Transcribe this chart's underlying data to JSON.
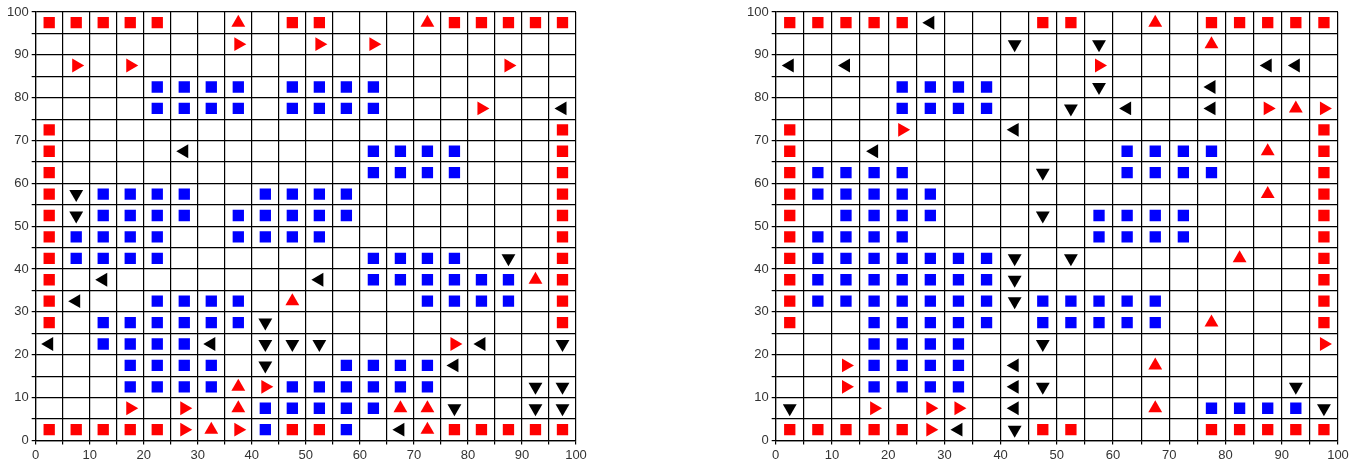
{
  "chart_data": [
    {
      "type": "scatter",
      "xlim": [
        0,
        100
      ],
      "ylim": [
        0,
        100
      ],
      "xticks": [
        0,
        {
          "value": 5,
          "label": null
        },
        10,
        {
          "value": 15,
          "label": null
        },
        20,
        {
          "value": 25,
          "label": null
        },
        30,
        {
          "value": 35,
          "label": null
        },
        40,
        {
          "value": 45,
          "label": null
        },
        50,
        {
          "value": 55,
          "label": null
        },
        60,
        {
          "value": 65,
          "label": null
        },
        70,
        {
          "value": 75,
          "label": null
        },
        80,
        {
          "value": 85,
          "label": null
        },
        90,
        {
          "value": 95,
          "label": null
        },
        100
      ],
      "yticks": [
        0,
        {
          "value": 5,
          "label": null
        },
        10,
        {
          "value": 15,
          "label": null
        },
        20,
        {
          "value": 25,
          "label": null
        },
        30,
        {
          "value": 35,
          "label": null
        },
        40,
        {
          "value": 45,
          "label": null
        },
        50,
        {
          "value": 55,
          "label": null
        },
        60,
        {
          "value": 65,
          "label": null
        },
        70,
        {
          "value": 75,
          "label": null
        },
        80,
        {
          "value": 85,
          "label": null
        },
        90,
        {
          "value": 95,
          "label": null
        },
        100
      ],
      "grid": true,
      "legend": false,
      "series": [
        {
          "color": "#ff0000",
          "marker": "square",
          "x": [
            2.5,
            7.5,
            12.5,
            17.5,
            22.5,
            47.5,
            52.5,
            77.5,
            82.5,
            87.5,
            92.5,
            97.5,
            2.5,
            2.5,
            2.5,
            2.5,
            2.5,
            2.5,
            2.5,
            2.5,
            2.5,
            2.5,
            97.5,
            97.5,
            97.5,
            97.5,
            97.5,
            97.5,
            97.5,
            97.5,
            97.5,
            97.5,
            2.5,
            7.5,
            12.5,
            17.5,
            22.5,
            47.5,
            52.5,
            77.5,
            82.5,
            87.5,
            92.5,
            97.5
          ],
          "values": [
            97.5,
            97.5,
            97.5,
            97.5,
            97.5,
            97.5,
            97.5,
            97.5,
            97.5,
            97.5,
            97.5,
            97.5,
            72.5,
            67.5,
            62.5,
            57.5,
            52.5,
            47.5,
            42.5,
            37.5,
            32.5,
            27.5,
            72.5,
            67.5,
            62.5,
            57.5,
            52.5,
            47.5,
            42.5,
            37.5,
            32.5,
            27.5,
            2.5,
            2.5,
            2.5,
            2.5,
            2.5,
            2.5,
            2.5,
            2.5,
            2.5,
            2.5,
            2.5,
            2.5
          ]
        },
        {
          "color": "#0000ff",
          "marker": "square",
          "x": [
            22.5,
            27.5,
            32.5,
            37.5,
            47.5,
            52.5,
            57.5,
            62.5,
            22.5,
            27.5,
            32.5,
            37.5,
            47.5,
            52.5,
            57.5,
            62.5,
            62.5,
            67.5,
            72.5,
            77.5,
            62.5,
            67.5,
            72.5,
            77.5,
            12.5,
            17.5,
            22.5,
            27.5,
            42.5,
            47.5,
            52.5,
            57.5,
            12.5,
            17.5,
            22.5,
            27.5,
            37.5,
            42.5,
            47.5,
            52.5,
            57.5,
            7.5,
            12.5,
            17.5,
            22.5,
            37.5,
            42.5,
            47.5,
            52.5,
            7.5,
            12.5,
            17.5,
            22.5,
            62.5,
            67.5,
            72.5,
            77.5,
            62.5,
            67.5,
            72.5,
            77.5,
            82.5,
            87.5,
            22.5,
            27.5,
            32.5,
            37.5,
            72.5,
            77.5,
            82.5,
            87.5,
            12.5,
            17.5,
            22.5,
            27.5,
            32.5,
            37.5,
            12.5,
            17.5,
            22.5,
            27.5,
            17.5,
            22.5,
            27.5,
            32.5,
            57.5,
            62.5,
            67.5,
            72.5,
            17.5,
            22.5,
            27.5,
            32.5,
            47.5,
            52.5,
            57.5,
            62.5,
            67.5,
            72.5,
            42.5,
            47.5,
            52.5,
            57.5,
            62.5,
            42.5,
            57.5
          ],
          "values": [
            82.5,
            82.5,
            82.5,
            82.5,
            82.5,
            82.5,
            82.5,
            82.5,
            77.5,
            77.5,
            77.5,
            77.5,
            77.5,
            77.5,
            77.5,
            77.5,
            67.5,
            67.5,
            67.5,
            67.5,
            62.5,
            62.5,
            62.5,
            62.5,
            57.5,
            57.5,
            57.5,
            57.5,
            57.5,
            57.5,
            57.5,
            57.5,
            52.5,
            52.5,
            52.5,
            52.5,
            52.5,
            52.5,
            52.5,
            52.5,
            52.5,
            47.5,
            47.5,
            47.5,
            47.5,
            47.5,
            47.5,
            47.5,
            47.5,
            42.5,
            42.5,
            42.5,
            42.5,
            42.5,
            42.5,
            42.5,
            42.5,
            37.5,
            37.5,
            37.5,
            37.5,
            37.5,
            37.5,
            32.5,
            32.5,
            32.5,
            32.5,
            32.5,
            32.5,
            32.5,
            32.5,
            27.5,
            27.5,
            27.5,
            27.5,
            27.5,
            27.5,
            22.5,
            22.5,
            22.5,
            22.5,
            17.5,
            17.5,
            17.5,
            17.5,
            17.5,
            17.5,
            17.5,
            17.5,
            12.5,
            12.5,
            12.5,
            12.5,
            12.5,
            12.5,
            12.5,
            12.5,
            12.5,
            12.5,
            7.5,
            7.5,
            7.5,
            7.5,
            7.5,
            2.5,
            2.5
          ]
        },
        {
          "color": "#ff0000",
          "marker": "triangle",
          "x": [
            37.5,
            72.5,
            92.5,
            47.5,
            37.5,
            37.5,
            67.5,
            72.5,
            32.5,
            72.5
          ],
          "values": [
            97.5,
            97.5,
            37.5,
            32.5,
            12.5,
            7.5,
            7.5,
            7.5,
            2.5,
            2.5
          ]
        },
        {
          "color": "#ff0000",
          "marker": "triangle-right",
          "x": [
            37.5,
            52.5,
            62.5,
            7.5,
            17.5,
            87.5,
            82.5,
            77.5,
            42.5,
            17.5,
            27.5,
            27.5,
            37.5
          ],
          "values": [
            92.5,
            92.5,
            92.5,
            87.5,
            87.5,
            87.5,
            77.5,
            22.5,
            12.5,
            7.5,
            7.5,
            2.5,
            2.5
          ]
        },
        {
          "color": "#000000",
          "marker": "triangle-left",
          "x": [
            97.5,
            27.5,
            12.5,
            52.5,
            7.5,
            2.5,
            32.5,
            82.5,
            77.5,
            67.5
          ],
          "values": [
            77.5,
            67.5,
            37.5,
            37.5,
            32.5,
            22.5,
            22.5,
            22.5,
            17.5,
            2.5
          ]
        },
        {
          "color": "#000000",
          "marker": "triangle-down",
          "x": [
            7.5,
            7.5,
            87.5,
            42.5,
            42.5,
            47.5,
            52.5,
            97.5,
            42.5,
            92.5,
            97.5,
            77.5,
            92.5,
            97.5
          ],
          "values": [
            57.5,
            52.5,
            42.5,
            27.5,
            22.5,
            22.5,
            22.5,
            22.5,
            17.5,
            12.5,
            12.5,
            7.5,
            7.5,
            7.5
          ]
        }
      ]
    },
    {
      "type": "scatter",
      "xlim": [
        0,
        100
      ],
      "ylim": [
        0,
        100
      ],
      "xticks": [
        0,
        {
          "value": 5,
          "label": null
        },
        10,
        {
          "value": 15,
          "label": null
        },
        20,
        {
          "value": 25,
          "label": null
        },
        30,
        {
          "value": 35,
          "label": null
        },
        40,
        {
          "value": 45,
          "label": null
        },
        50,
        {
          "value": 55,
          "label": null
        },
        60,
        {
          "value": 65,
          "label": null
        },
        70,
        {
          "value": 75,
          "label": null
        },
        80,
        {
          "value": 85,
          "label": null
        },
        90,
        {
          "value": 95,
          "label": null
        },
        100
      ],
      "yticks": [
        0,
        {
          "value": 5,
          "label": null
        },
        10,
        {
          "value": 15,
          "label": null
        },
        20,
        {
          "value": 25,
          "label": null
        },
        30,
        {
          "value": 35,
          "label": null
        },
        40,
        {
          "value": 45,
          "label": null
        },
        50,
        {
          "value": 55,
          "label": null
        },
        60,
        {
          "value": 65,
          "label": null
        },
        70,
        {
          "value": 75,
          "label": null
        },
        80,
        {
          "value": 85,
          "label": null
        },
        90,
        {
          "value": 95,
          "label": null
        },
        100
      ],
      "grid": true,
      "legend": false,
      "series": [
        {
          "color": "#ff0000",
          "marker": "square",
          "x": [
            2.5,
            7.5,
            12.5,
            17.5,
            22.5,
            47.5,
            52.5,
            77.5,
            82.5,
            87.5,
            92.5,
            97.5,
            2.5,
            2.5,
            2.5,
            2.5,
            2.5,
            2.5,
            2.5,
            2.5,
            2.5,
            2.5,
            97.5,
            97.5,
            97.5,
            97.5,
            97.5,
            97.5,
            97.5,
            97.5,
            97.5,
            97.5,
            2.5,
            7.5,
            12.5,
            17.5,
            22.5,
            47.5,
            52.5,
            77.5,
            82.5,
            87.5,
            92.5,
            97.5
          ],
          "values": [
            97.5,
            97.5,
            97.5,
            97.5,
            97.5,
            97.5,
            97.5,
            97.5,
            97.5,
            97.5,
            97.5,
            97.5,
            72.5,
            67.5,
            62.5,
            57.5,
            52.5,
            47.5,
            42.5,
            37.5,
            32.5,
            27.5,
            72.5,
            67.5,
            62.5,
            57.5,
            52.5,
            47.5,
            42.5,
            37.5,
            32.5,
            27.5,
            2.5,
            2.5,
            2.5,
            2.5,
            2.5,
            2.5,
            2.5,
            2.5,
            2.5,
            2.5,
            2.5,
            2.5
          ]
        },
        {
          "color": "#0000ff",
          "marker": "square",
          "x": [
            22.5,
            27.5,
            32.5,
            37.5,
            22.5,
            27.5,
            32.5,
            37.5,
            62.5,
            67.5,
            72.5,
            77.5,
            7.5,
            12.5,
            17.5,
            22.5,
            62.5,
            67.5,
            72.5,
            77.5,
            7.5,
            12.5,
            17.5,
            22.5,
            27.5,
            12.5,
            17.5,
            22.5,
            27.5,
            57.5,
            62.5,
            67.5,
            72.5,
            7.5,
            12.5,
            17.5,
            22.5,
            57.5,
            62.5,
            67.5,
            72.5,
            7.5,
            12.5,
            17.5,
            22.5,
            27.5,
            32.5,
            37.5,
            7.5,
            12.5,
            17.5,
            22.5,
            27.5,
            32.5,
            37.5,
            7.5,
            12.5,
            17.5,
            22.5,
            27.5,
            32.5,
            37.5,
            47.5,
            52.5,
            57.5,
            62.5,
            67.5,
            17.5,
            22.5,
            27.5,
            32.5,
            37.5,
            47.5,
            52.5,
            57.5,
            62.5,
            67.5,
            17.5,
            22.5,
            27.5,
            32.5,
            17.5,
            22.5,
            27.5,
            32.5,
            17.5,
            22.5,
            27.5,
            32.5,
            77.5,
            82.5,
            87.5,
            92.5
          ],
          "values": [
            82.5,
            82.5,
            82.5,
            82.5,
            77.5,
            77.5,
            77.5,
            77.5,
            67.5,
            67.5,
            67.5,
            67.5,
            62.5,
            62.5,
            62.5,
            62.5,
            62.5,
            62.5,
            62.5,
            62.5,
            57.5,
            57.5,
            57.5,
            57.5,
            57.5,
            52.5,
            52.5,
            52.5,
            52.5,
            52.5,
            52.5,
            52.5,
            52.5,
            47.5,
            47.5,
            47.5,
            47.5,
            47.5,
            47.5,
            47.5,
            47.5,
            42.5,
            42.5,
            42.5,
            42.5,
            42.5,
            42.5,
            42.5,
            37.5,
            37.5,
            37.5,
            37.5,
            37.5,
            37.5,
            37.5,
            32.5,
            32.5,
            32.5,
            32.5,
            32.5,
            32.5,
            32.5,
            32.5,
            32.5,
            32.5,
            32.5,
            32.5,
            27.5,
            27.5,
            27.5,
            27.5,
            27.5,
            27.5,
            27.5,
            27.5,
            27.5,
            27.5,
            22.5,
            22.5,
            22.5,
            22.5,
            17.5,
            17.5,
            17.5,
            17.5,
            12.5,
            12.5,
            12.5,
            12.5,
            7.5,
            7.5,
            7.5,
            7.5
          ]
        },
        {
          "color": "#ff0000",
          "marker": "triangle",
          "x": [
            67.5,
            77.5,
            92.5,
            87.5,
            87.5,
            82.5,
            77.5,
            67.5,
            67.5
          ],
          "values": [
            97.5,
            92.5,
            77.5,
            67.5,
            57.5,
            42.5,
            27.5,
            17.5,
            7.5
          ]
        },
        {
          "color": "#ff0000",
          "marker": "triangle-right",
          "x": [
            57.5,
            87.5,
            97.5,
            22.5,
            97.5,
            12.5,
            12.5,
            17.5,
            27.5,
            32.5,
            27.5
          ],
          "values": [
            87.5,
            77.5,
            77.5,
            72.5,
            22.5,
            17.5,
            12.5,
            7.5,
            7.5,
            7.5,
            2.5
          ]
        },
        {
          "color": "#000000",
          "marker": "triangle-left",
          "x": [
            27.5,
            2.5,
            12.5,
            87.5,
            92.5,
            77.5,
            62.5,
            77.5,
            42.5,
            17.5,
            42.5,
            42.5,
            42.5,
            32.5
          ],
          "values": [
            97.5,
            87.5,
            87.5,
            87.5,
            87.5,
            82.5,
            77.5,
            77.5,
            72.5,
            67.5,
            17.5,
            12.5,
            7.5,
            2.5
          ]
        },
        {
          "color": "#000000",
          "marker": "triangle-down",
          "x": [
            42.5,
            57.5,
            57.5,
            52.5,
            47.5,
            47.5,
            42.5,
            52.5,
            42.5,
            42.5,
            47.5,
            47.5,
            92.5,
            2.5,
            97.5,
            42.5
          ],
          "values": [
            92.5,
            92.5,
            82.5,
            77.5,
            62.5,
            52.5,
            42.5,
            42.5,
            37.5,
            32.5,
            22.5,
            12.5,
            12.5,
            7.5,
            7.5,
            2.5
          ]
        }
      ]
    }
  ]
}
